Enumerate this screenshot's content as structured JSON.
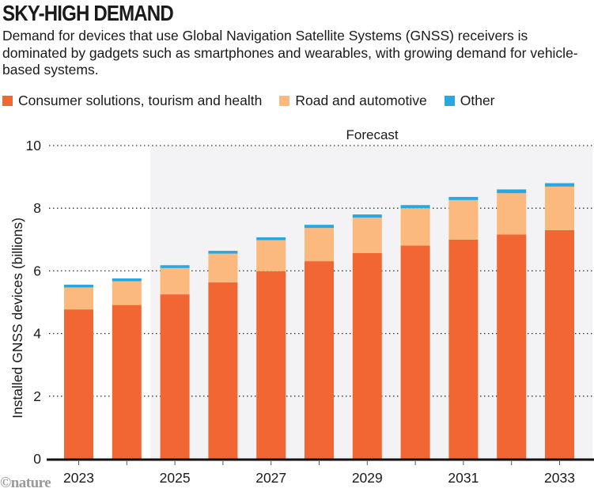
{
  "header": {
    "title": "SKY-HIGH DEMAND",
    "subtitle": "Demand for devices that use Global Navigation Satellite Systems (GNSS) receivers is dominated by gadgets such as smartphones and wearables, with growing demand for vehicle-based systems."
  },
  "credit": "©nature",
  "colors": {
    "consumer": "#F26633",
    "road": "#FBB97D",
    "other": "#29A8E0",
    "forecast_bg": "#F3F3F6",
    "axis": "#111111",
    "grid": "#333333"
  },
  "chart_data": {
    "type": "bar",
    "stacked": true,
    "title": "SKY-HIGH DEMAND",
    "xlabel": "",
    "ylabel": "Installed GNSS devices (billions)",
    "ylim": [
      0,
      10
    ],
    "yticks": [
      "0",
      "2",
      "4",
      "6",
      "8",
      "10"
    ],
    "ytick_values": [
      0,
      2,
      4,
      6,
      8,
      10
    ],
    "grid": "horizontal dotted",
    "legend_position": "top-left",
    "categories": [
      "2023",
      "2024",
      "2025",
      "2026",
      "2027",
      "2028",
      "2029",
      "2030",
      "2031",
      "2032",
      "2033"
    ],
    "xtick_labels": [
      "2023",
      "",
      "2025",
      "",
      "2027",
      "",
      "2029",
      "",
      "2031",
      "",
      "2033"
    ],
    "annotation": {
      "text": "Forecast",
      "start_category": "2025",
      "end_category": "2033"
    },
    "series": [
      {
        "name": "Consumer solutions, tourism and health",
        "key": "consumer",
        "values": [
          4.77,
          4.91,
          5.25,
          5.63,
          5.99,
          6.31,
          6.57,
          6.81,
          7.0,
          7.16,
          7.3
        ]
      },
      {
        "name": "Road and automotive",
        "key": "road",
        "values": [
          0.7,
          0.76,
          0.84,
          0.92,
          0.99,
          1.06,
          1.13,
          1.19,
          1.26,
          1.32,
          1.39
        ]
      },
      {
        "name": "Other",
        "key": "other",
        "values": [
          0.09,
          0.09,
          0.09,
          0.09,
          0.09,
          0.1,
          0.1,
          0.1,
          0.1,
          0.12,
          0.11
        ]
      }
    ]
  }
}
